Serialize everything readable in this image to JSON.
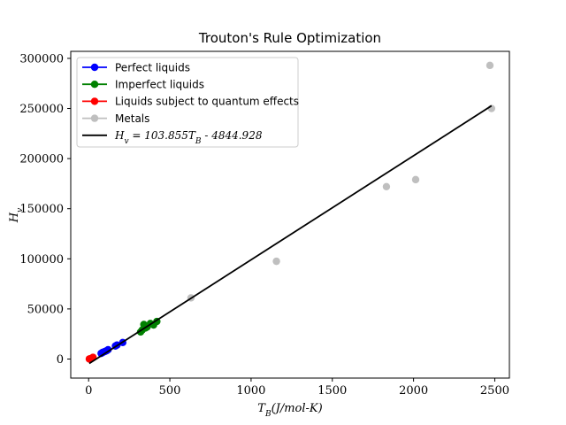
{
  "chart_data": {
    "type": "scatter",
    "title": "Trouton's Rule Optimization",
    "xlabel": "T_B(J/mol-K)",
    "ylabel": "H_v",
    "xlim": [
      -110,
      2590
    ],
    "ylim": [
      -19000,
      307000
    ],
    "xticks": [
      0,
      500,
      1000,
      1500,
      2000,
      2500
    ],
    "yticks": [
      0,
      50000,
      100000,
      150000,
      200000,
      250000,
      300000
    ],
    "grid": false,
    "legend_position": "top-left",
    "series": [
      {
        "name": "Perfect liquids",
        "color": "#0000ff",
        "x": [
          77,
          85,
          90,
          100,
          110,
          120,
          165,
          175,
          210
        ],
        "y": [
          5600,
          6500,
          6800,
          7500,
          8200,
          9300,
          13000,
          14000,
          16500
        ]
      },
      {
        "name": "Imperfect liquids",
        "color": "#008000",
        "x": [
          320,
          330,
          340,
          350,
          360,
          380,
          400,
          420
        ],
        "y": [
          27000,
          29000,
          34500,
          31000,
          32000,
          35500,
          34000,
          37500
        ]
      },
      {
        "name": "Liquids subject to quantum effects",
        "color": "#ff0000",
        "x": [
          4,
          10,
          20,
          27
        ],
        "y": [
          80,
          300,
          900,
          1700
        ]
      },
      {
        "name": "Metals",
        "color": "#bfbfbf",
        "x": [
          630,
          1156,
          1833,
          2013,
          2470,
          2480
        ],
        "y": [
          61000,
          97500,
          172000,
          179000,
          293000,
          250000
        ]
      }
    ],
    "fit_line": {
      "name": "H_v = 103.855T_B - 4844.928",
      "color": "#000000",
      "slope": 103.855,
      "intercept": -4844.928,
      "x_range": [
        4,
        2480
      ]
    }
  }
}
